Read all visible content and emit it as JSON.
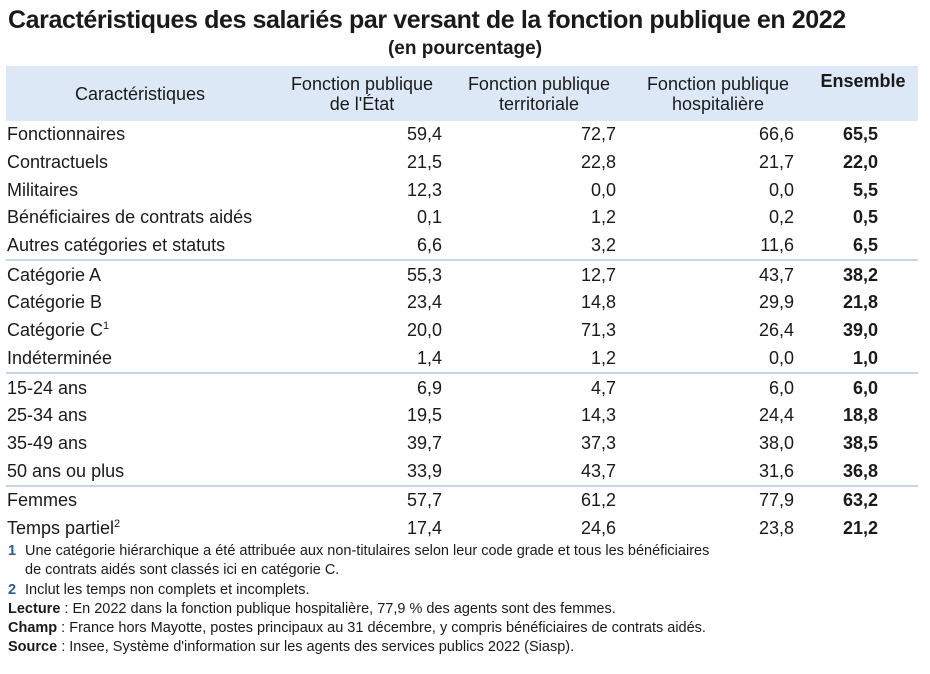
{
  "title": "Caractéristiques des salariés par versant de la fonction publique en 2022",
  "subtitle": "(en pourcentage)",
  "table": {
    "headers": {
      "col0": "Caractéristiques",
      "col1_line1": "Fonction publique",
      "col1_line2": "de l'État",
      "col2_line1": "Fonction publique",
      "col2_line2": "territoriale",
      "col3_line1": "Fonction publique",
      "col3_line2": "hospitalière",
      "col4": "Ensemble"
    },
    "rows": [
      {
        "label": "Fonctionnaires",
        "sup": "",
        "fpe": "59,4",
        "fpt": "72,7",
        "fph": "66,6",
        "ensemble": "65,5"
      },
      {
        "label": "Contractuels",
        "sup": "",
        "fpe": "21,5",
        "fpt": "22,8",
        "fph": "21,7",
        "ensemble": "22,0"
      },
      {
        "label": "Militaires",
        "sup": "",
        "fpe": "12,3",
        "fpt": "0,0",
        "fph": "0,0",
        "ensemble": "5,5"
      },
      {
        "label": "Bénéficiaires de contrats aidés",
        "sup": "",
        "fpe": "0,1",
        "fpt": "1,2",
        "fph": "0,2",
        "ensemble": "0,5"
      },
      {
        "label": "Autres catégories et statuts",
        "sup": "",
        "fpe": "6,6",
        "fpt": "3,2",
        "fph": "11,6",
        "ensemble": "6,5"
      },
      {
        "label": "Catégorie A",
        "sup": "",
        "fpe": "55,3",
        "fpt": "12,7",
        "fph": "43,7",
        "ensemble": "38,2"
      },
      {
        "label": "Catégorie B",
        "sup": "",
        "fpe": "23,4",
        "fpt": "14,8",
        "fph": "29,9",
        "ensemble": "21,8"
      },
      {
        "label": "Catégorie C",
        "sup": "1",
        "fpe": "20,0",
        "fpt": "71,3",
        "fph": "26,4",
        "ensemble": "39,0"
      },
      {
        "label": "Indéterminée",
        "sup": "",
        "fpe": "1,4",
        "fpt": "1,2",
        "fph": "0,0",
        "ensemble": "1,0"
      },
      {
        "label": "15-24 ans",
        "sup": "",
        "fpe": "6,9",
        "fpt": "4,7",
        "fph": "6,0",
        "ensemble": "6,0"
      },
      {
        "label": "25-34 ans",
        "sup": "",
        "fpe": "19,5",
        "fpt": "14,3",
        "fph": "24,4",
        "ensemble": "18,8"
      },
      {
        "label": "35-49 ans",
        "sup": "",
        "fpe": "39,7",
        "fpt": "37,3",
        "fph": "38,0",
        "ensemble": "38,5"
      },
      {
        "label": "50 ans ou plus",
        "sup": "",
        "fpe": "33,9",
        "fpt": "43,7",
        "fph": "31,6",
        "ensemble": "36,8"
      },
      {
        "label": "Femmes",
        "sup": "",
        "fpe": "57,7",
        "fpt": "61,2",
        "fph": "77,9",
        "ensemble": "63,2"
      },
      {
        "label": "Temps partiel",
        "sup": "2",
        "fpe": "17,4",
        "fpt": "24,6",
        "fph": "23,8",
        "ensemble": "21,2"
      }
    ]
  },
  "notes": {
    "note1_num": "1",
    "note1_line1": "Une catégorie hiérarchique a été attribuée aux non-titulaires selon leur code grade et tous les bénéficiaires",
    "note1_line2": "de contrats aidés sont classés ici en catégorie C.",
    "note2_num": "2",
    "note2_text": "Inclut les temps non complets et incomplets.",
    "lecture_label": "Lecture",
    "lecture_text": " : En 2022 dans la fonction publique hospitalière, 77,9 % des agents sont des femmes.",
    "champ_label": "Champ",
    "champ_text": " : France hors Mayotte, postes principaux au 31 décembre, y compris bénéficiaires de contrats aidés.",
    "source_label": "Source",
    "source_text": " : Insee, Système d'information sur les agents des services publics 2022 (Siasp)."
  },
  "colors": {
    "header_bg": "#dce8f6",
    "separator": "#c5d6ea",
    "note_number": "#2b5c9c"
  }
}
